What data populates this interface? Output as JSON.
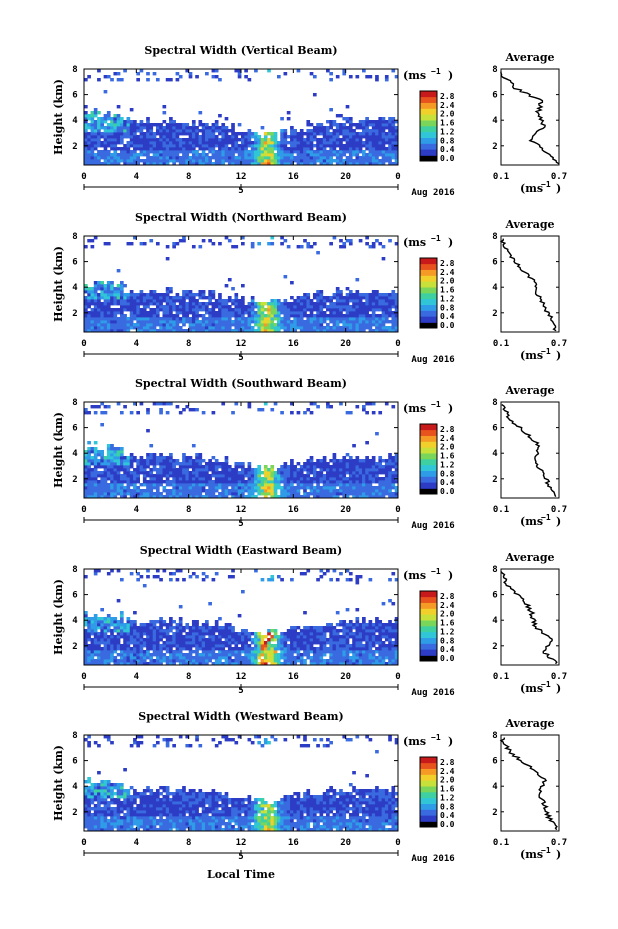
{
  "shared": {
    "time_ticks": [
      "0",
      "4",
      "8",
      "12",
      "16",
      "20",
      "0"
    ],
    "height_ticks": [
      "2",
      "4",
      "6",
      "8"
    ],
    "date_tick": "5",
    "month_label": "Aug 2016",
    "ylabel": "Height (km)",
    "unit_label": "(ms",
    "unit_exp": "−1",
    "colorbar_ticks": [
      "2.8",
      "2.4",
      "2.0",
      "1.6",
      "1.2",
      "0.8",
      "0.4",
      "0.0"
    ],
    "profile_title": "Average",
    "profile_xticks": [
      "0.1",
      "0.7"
    ],
    "profile_yticks": [
      "2",
      "4",
      "6",
      "8"
    ],
    "profile_xlabel": "(ms",
    "xlabel": "Local Time"
  },
  "colors": {
    "scale": [
      "#1a1f8a",
      "#2c3cc4",
      "#3a6ae0",
      "#2f9ce8",
      "#30c6d8",
      "#3ed0a0",
      "#7ad65a",
      "#c8e03a",
      "#f2d02c",
      "#f59a25",
      "#e8531d",
      "#c81a1a"
    ]
  },
  "chart_data": [
    {
      "type": "heatmap",
      "title": "Spectral Width (Vertical Beam)",
      "beam": "Vertical",
      "xlabel": "",
      "ylabel": "Height (km)",
      "xlim": [
        0,
        24
      ],
      "ylim": [
        0.5,
        8
      ],
      "zlim": [
        0.0,
        2.8
      ],
      "top_base_km": 4.0,
      "dip_km": 1.1,
      "tail_km": 0.0,
      "profile": {
        "title": "Average",
        "xlim": [
          0.1,
          0.7
        ],
        "height_km": [
          0.7,
          1.5,
          2.5,
          3.5,
          4.5,
          5.5,
          6.5,
          7.5
        ],
        "values": [
          0.7,
          0.58,
          0.4,
          0.55,
          0.48,
          0.52,
          0.25,
          0.12
        ]
      }
    },
    {
      "type": "heatmap",
      "title": "Spectral Width (Northward Beam)",
      "beam": "Northward",
      "xlabel": "",
      "ylabel": "Height (km)",
      "xlim": [
        0,
        24
      ],
      "ylim": [
        0.5,
        8
      ],
      "zlim": [
        0.0,
        2.8
      ],
      "top_base_km": 3.7,
      "dip_km": 0.8,
      "tail_km": 0.0,
      "profile": {
        "title": "Average",
        "xlim": [
          0.1,
          0.7
        ],
        "height_km": [
          0.7,
          1.5,
          2.5,
          3.5,
          4.5,
          5.5,
          6.5,
          7.5
        ],
        "values": [
          0.66,
          0.62,
          0.55,
          0.48,
          0.44,
          0.3,
          0.18,
          0.12
        ]
      }
    },
    {
      "type": "heatmap",
      "title": "Spectral Width (Southward Beam)",
      "beam": "Southward",
      "xlabel": "",
      "ylabel": "Height (km)",
      "xlim": [
        0,
        24
      ],
      "ylim": [
        0.5,
        8
      ],
      "zlim": [
        0.0,
        2.8
      ],
      "top_base_km": 3.8,
      "dip_km": 0.9,
      "tail_km": 0.0,
      "profile": {
        "title": "Average",
        "xlim": [
          0.1,
          0.7
        ],
        "height_km": [
          0.7,
          1.5,
          2.5,
          3.5,
          4.5,
          5.5,
          6.5,
          7.5
        ],
        "values": [
          0.68,
          0.6,
          0.52,
          0.45,
          0.5,
          0.38,
          0.2,
          0.13
        ]
      }
    },
    {
      "type": "heatmap",
      "title": "Spectral Width (Eastward Beam)",
      "beam": "Eastward",
      "xlabel": "",
      "ylabel": "Height (km)",
      "xlim": [
        0,
        24
      ],
      "ylim": [
        0.5,
        8
      ],
      "zlim": [
        0.0,
        2.8
      ],
      "top_base_km": 3.9,
      "dip_km": 0.9,
      "tail_km": 0.0,
      "profile": {
        "title": "Average",
        "xlim": [
          0.1,
          0.7
        ],
        "height_km": [
          0.7,
          1.5,
          2.5,
          3.5,
          4.5,
          5.5,
          6.5,
          7.5
        ],
        "values": [
          0.66,
          0.55,
          0.62,
          0.45,
          0.42,
          0.35,
          0.18,
          0.12
        ]
      }
    },
    {
      "type": "heatmap",
      "title": "Spectral Width (Westward Beam)",
      "beam": "Westward",
      "xlabel": "Local Time",
      "ylabel": "Height (km)",
      "xlim": [
        0,
        24
      ],
      "ylim": [
        0.5,
        8
      ],
      "zlim": [
        0.0,
        2.8
      ],
      "top_base_km": 3.8,
      "dip_km": 0.9,
      "tail_km": 0.0,
      "profile": {
        "title": "Average",
        "xlim": [
          0.1,
          0.7
        ],
        "height_km": [
          0.7,
          1.5,
          2.5,
          3.5,
          4.5,
          5.5,
          6.5,
          7.5
        ],
        "values": [
          0.68,
          0.6,
          0.55,
          0.5,
          0.55,
          0.4,
          0.22,
          0.12
        ]
      }
    }
  ]
}
